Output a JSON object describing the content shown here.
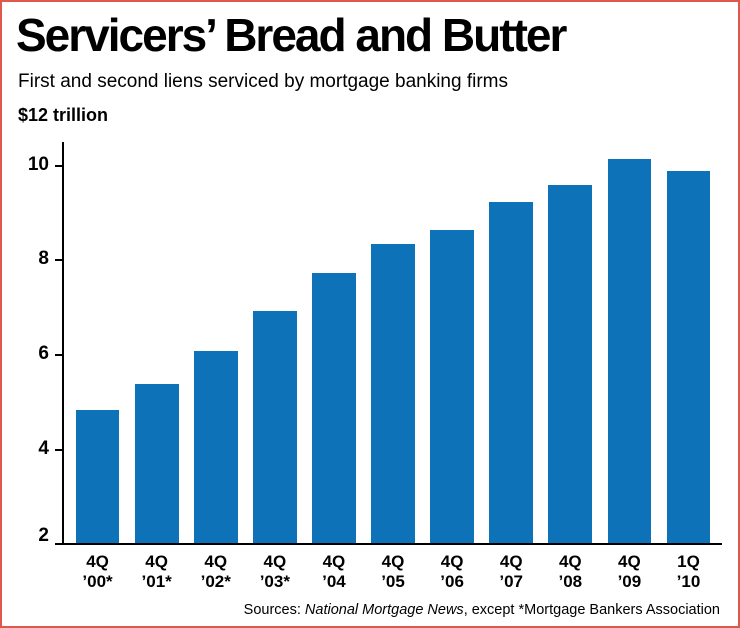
{
  "header": {
    "title": "Servicers’ Bread and Butter",
    "subtitle": "First and second liens serviced by mortgage banking firms",
    "unit_label": "$12 trillion"
  },
  "colors": {
    "bar": "#0e72b8",
    "border": "#e0574d",
    "axis": "#000000"
  },
  "chart_data": {
    "type": "bar",
    "title": "Servicers’ Bread and Butter",
    "subtitle": "First and second liens serviced by mortgage banking firms",
    "unit": "$12 trillion",
    "categories": [
      [
        "4Q",
        "’00*"
      ],
      [
        "4Q",
        "’01*"
      ],
      [
        "4Q",
        "’02*"
      ],
      [
        "4Q",
        "’03*"
      ],
      [
        "4Q",
        "’04"
      ],
      [
        "4Q",
        "’05"
      ],
      [
        "4Q",
        "’06"
      ],
      [
        "4Q",
        "’07"
      ],
      [
        "4Q",
        "’08"
      ],
      [
        "4Q",
        "’09"
      ],
      [
        "1Q",
        "’10"
      ]
    ],
    "values": [
      4.8,
      5.35,
      6.05,
      6.9,
      7.7,
      8.3,
      8.6,
      9.2,
      9.55,
      10.1,
      9.85
    ],
    "xlabel": "",
    "ylabel": "",
    "ylim": [
      2,
      11.3
    ],
    "yticks": [
      2,
      4,
      6,
      8,
      10
    ],
    "grid": false,
    "legend": false,
    "bar_color": "#0e72b8"
  },
  "footer": {
    "source_prefix": "Sources: ",
    "source_italic": "National Mortgage News",
    "source_suffix": ", except *Mortgage Bankers Association"
  }
}
